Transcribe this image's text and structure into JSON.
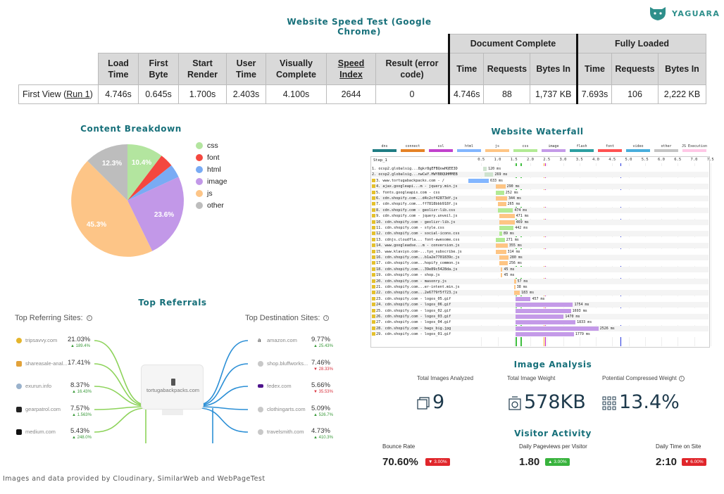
{
  "header": {
    "title": "Website Speed Test (Google Chrome)",
    "brand": "YAGUARA"
  },
  "speed_table": {
    "group_document": "Document Complete",
    "group_fully": "Fully Loaded",
    "columns": [
      "Load Time",
      "First Byte",
      "Start Render",
      "User Time",
      "Visually Complete",
      "Speed Index",
      "Result (error code)",
      "Time",
      "Requests",
      "Bytes In",
      "Time",
      "Requests",
      "Bytes In"
    ],
    "row_label_prefix": "First View (",
    "row_label_link": "Run 1",
    "row_label_suffix": ")",
    "values": [
      "4.746s",
      "0.645s",
      "1.700s",
      "2.403s",
      "4.100s",
      "2644",
      "0",
      "4.746s",
      "88",
      "1,737 KB",
      "7.693s",
      "106",
      "2,222 KB"
    ]
  },
  "content_breakdown": {
    "title": "Content Breakdown",
    "slice_labels": [
      "10.4%",
      "23.6%",
      "45.3%",
      "12.3%"
    ],
    "legend": [
      {
        "name": "css",
        "color": "#b3e59f"
      },
      {
        "name": "font",
        "color": "#f4473f"
      },
      {
        "name": "html",
        "color": "#79abf4"
      },
      {
        "name": "image",
        "color": "#c298e8"
      },
      {
        "name": "js",
        "color": "#fdc587"
      },
      {
        "name": "other",
        "color": "#bdbdbd"
      }
    ]
  },
  "top_referrals": {
    "title": "Top Referrals",
    "referring_head": "Top Referring Sites:",
    "destination_head": "Top Destination Sites:",
    "center_site": "tortugabackpacks.com",
    "referring": [
      {
        "site": "tripsavvy.com",
        "pct": "21.03%",
        "change": "189.4%",
        "dir": "up"
      },
      {
        "site": "shareasale-anal...",
        "pct": "17.41%",
        "change": "",
        "dir": ""
      },
      {
        "site": "exurun.info",
        "pct": "8.37%",
        "change": "16.43%",
        "dir": "up"
      },
      {
        "site": "gearpatrol.com",
        "pct": "7.57%",
        "change": "1.563%",
        "dir": "up"
      },
      {
        "site": "medium.com",
        "pct": "5.43%",
        "change": "248.0%",
        "dir": "up"
      }
    ],
    "destination": [
      {
        "site": "amazon.com",
        "pct": "9.77%",
        "change": "25.43%",
        "dir": "up"
      },
      {
        "site": "shop.bluffworks...",
        "pct": "7.46%",
        "change": "28.33%",
        "dir": "down"
      },
      {
        "site": "fedex.com",
        "pct": "5.66%",
        "change": "35.53%",
        "dir": "down"
      },
      {
        "site": "clothingarts.com",
        "pct": "5.09%",
        "change": "526.7%",
        "dir": "up"
      },
      {
        "site": "travelsmith.com",
        "pct": "4.73%",
        "change": "410.3%",
        "dir": "up"
      }
    ]
  },
  "waterfall": {
    "title": "Website Waterfall",
    "step_label": "Step_1",
    "ticks": [
      "0.5",
      "1.0",
      "1.5",
      "2.0",
      "2.5",
      "3.0",
      "3.5",
      "4.0",
      "4.5",
      "5.0",
      "5.5",
      "6.0",
      "6.5",
      "7.0",
      "7.5"
    ],
    "legend": [
      {
        "name": "dns",
        "color": "#1f7c83"
      },
      {
        "name": "connect",
        "color": "#e58226"
      },
      {
        "name": "ssl",
        "color": "#c141cd"
      },
      {
        "name": "html",
        "color": "#82b6ff"
      },
      {
        "name": "js",
        "color": "#fec584"
      },
      {
        "name": "css",
        "color": "#b2ea94"
      },
      {
        "name": "image",
        "color": "#c49ae8"
      },
      {
        "name": "flash",
        "color": "#2d9fa1"
      },
      {
        "name": "font",
        "color": "#ff5252"
      },
      {
        "name": "video",
        "color": "#49aedc"
      },
      {
        "name": "other",
        "color": "#c4c4c4"
      },
      {
        "name": "JS Execution",
        "color": "#ffc8e6"
      }
    ],
    "rows": [
      {
        "label": "1. ocsp2.globalsig...8gkr8gEFBQowHQEE3D",
        "lock": false,
        "start": 0.55,
        "dur": 0.12,
        "color": "#cfe3cf",
        "ms": "120 ms"
      },
      {
        "label": "2. ocsp2.globalsig...nwCwY.HWYBBQUHMMEB",
        "lock": false,
        "start": 0.6,
        "dur": 0.27,
        "color": "#cfe3cf",
        "ms": "269 ms"
      },
      {
        "label": "3. www.tortugabackpacks.com - /",
        "lock": true,
        "start": 0.1,
        "dur": 0.63,
        "color": "#82b6ff",
        "ms": "633 ms"
      },
      {
        "label": "4. ajax.googleapi...m - jquery.min.js",
        "lock": true,
        "start": 0.95,
        "dur": 0.29,
        "color": "#fec584",
        "ms": "290 ms"
      },
      {
        "label": "5. fonts.googleapis.com - css",
        "lock": true,
        "start": 0.95,
        "dur": 0.25,
        "color": "#b2ea94",
        "ms": "252 ms"
      },
      {
        "label": "6. cdn.shopify.com...d4c2cf42873df.js",
        "lock": true,
        "start": 0.95,
        "dur": 0.34,
        "color": "#fec584",
        "ms": "344 ms"
      },
      {
        "label": "7. cdn.shopify.com...ff7818bbb918f.js",
        "lock": true,
        "start": 1.0,
        "dur": 0.26,
        "color": "#fec584",
        "ms": "265 ms"
      },
      {
        "label": "8. cdn.shopify.com - geolizr-lib.css",
        "lock": true,
        "start": 1.0,
        "dur": 0.47,
        "color": "#b2ea94",
        "ms": "474 ms"
      },
      {
        "label": "9. cdn.shopify.com - jquery.unveil.js",
        "lock": true,
        "start": 1.05,
        "dur": 0.47,
        "color": "#fec584",
        "ms": "471 ms"
      },
      {
        "label": "10. cdn.shopify.com - geolizr-lib.js",
        "lock": true,
        "start": 1.05,
        "dur": 0.47,
        "color": "#fec584",
        "ms": "469 ms"
      },
      {
        "label": "11. cdn.shopify.com - style.css",
        "lock": true,
        "start": 1.05,
        "dur": 0.44,
        "color": "#b2ea94",
        "ms": "442 ms"
      },
      {
        "label": "12. cdn.shopify.com - social-icons.css",
        "lock": true,
        "start": 1.05,
        "dur": 0.09,
        "color": "#b2ea94",
        "ms": "89 ms"
      },
      {
        "label": "13. cdnjs.cloudfla... font-awesome.css",
        "lock": true,
        "start": 0.95,
        "dur": 0.27,
        "color": "#b2ea94",
        "ms": "271 ms"
      },
      {
        "label": "14. www.googleadse...m - conversion.js",
        "lock": true,
        "start": 0.95,
        "dur": 0.36,
        "color": "#fec584",
        "ms": "355 ms"
      },
      {
        "label": "15. www.klaviyo.com-...tyo_subscribe.js",
        "lock": true,
        "start": 0.95,
        "dur": 0.31,
        "color": "#fec584",
        "ms": "314 ms"
      },
      {
        "label": "16. cdn.shopify.com...b1a2e7701839c.js",
        "lock": true,
        "start": 1.05,
        "dur": 0.28,
        "color": "#fec584",
        "ms": "280 ms"
      },
      {
        "label": "17. cdn.shopify.com...hopify_common.js",
        "lock": true,
        "start": 1.05,
        "dur": 0.26,
        "color": "#fec584",
        "ms": "256 ms"
      },
      {
        "label": "18. cdn.shopify.com...39e89c5428da.js",
        "lock": true,
        "start": 1.1,
        "dur": 0.05,
        "color": "#fec584",
        "ms": "45 ms"
      },
      {
        "label": "19. cdn.shopify.com - shop.js",
        "lock": true,
        "start": 1.1,
        "dur": 0.05,
        "color": "#fec584",
        "ms": "45 ms"
      },
      {
        "label": "20. cdn.shopify.com - masonry.js",
        "lock": true,
        "start": 1.5,
        "dur": 0.06,
        "color": "#fec584",
        "ms": "57 ms"
      },
      {
        "label": "21. cdn.shopify.com...er-intent.min.js",
        "lock": true,
        "start": 1.5,
        "dur": 0.04,
        "color": "#fec584",
        "ms": "38 ms"
      },
      {
        "label": "22. cdn.shopify.com...2e6779f5f723.js",
        "lock": true,
        "start": 1.5,
        "dur": 0.18,
        "color": "#fec584",
        "ms": "183 ms"
      },
      {
        "label": "23. cdn.shopify.com - logos_05.gif",
        "lock": true,
        "start": 1.55,
        "dur": 0.46,
        "color": "#c49ae8",
        "ms": "457 ms"
      },
      {
        "label": "24. cdn.shopify.com - logos_06.gif",
        "lock": true,
        "start": 1.55,
        "dur": 1.75,
        "color": "#c49ae8",
        "ms": "1754 ms"
      },
      {
        "label": "25. cdn.shopify.com - logos_02.gif",
        "lock": true,
        "start": 1.55,
        "dur": 1.69,
        "color": "#c49ae8",
        "ms": "1693 ms"
      },
      {
        "label": "26. cdn.shopify.com - logos_03.gif",
        "lock": true,
        "start": 1.55,
        "dur": 1.47,
        "color": "#c49ae8",
        "ms": "1470 ms"
      },
      {
        "label": "27. cdn.shopify.com - logos_04.gif",
        "lock": true,
        "start": 1.55,
        "dur": 1.83,
        "color": "#c49ae8",
        "ms": "1833 ms"
      },
      {
        "label": "28. cdn.shopify.com - bags_big.jpg",
        "lock": true,
        "start": 1.55,
        "dur": 2.53,
        "color": "#c49ae8",
        "ms": "2526 ms"
      },
      {
        "label": "29. cdn.shopify.com - logos_01.gif",
        "lock": true,
        "start": 1.55,
        "dur": 1.78,
        "color": "#c49ae8",
        "ms": "1779 ms"
      }
    ]
  },
  "image_analysis": {
    "title": "Image Analysis",
    "total_label": "Total Images Analyzed",
    "total_value": "9",
    "weight_label": "Total Image Weight",
    "weight_value": "578KB",
    "compressed_label": "Potential Compressed Weight",
    "compressed_value": "13.4%"
  },
  "visitor_activity": {
    "title": "Visitor Activity",
    "items": [
      {
        "label": "Bounce Rate",
        "value": "70.60%",
        "badge": "3.00%",
        "dir": "down"
      },
      {
        "label": "Daily Pageviews per Visitor",
        "value": "1.80",
        "badge": "3.00%",
        "dir": "up"
      },
      {
        "label": "Daily Time on Site",
        "value": "2:10",
        "badge": "6.00%",
        "dir": "down"
      }
    ]
  },
  "footer": {
    "text": "Images and data provided by Cloudinary, SimilarWeb and WebPageTest"
  }
}
